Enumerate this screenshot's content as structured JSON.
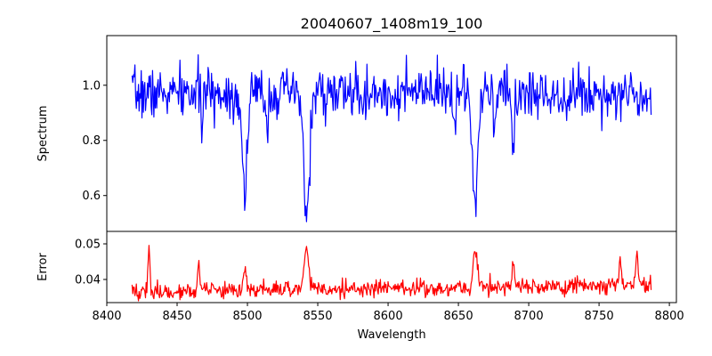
{
  "chart_data": [
    {
      "type": "line",
      "title": "20040607_1408m19_100",
      "ylabel": "Spectrum",
      "xlabel": "",
      "xlim": [
        8400,
        8805
      ],
      "ylim": [
        0.47,
        1.18
      ],
      "yticks": [
        0.6,
        0.8,
        1.0
      ],
      "ytick_labels": [
        "0.6",
        "0.8",
        "1.0"
      ],
      "show_xtick_labels": false,
      "color": "#0000ff",
      "x_range": [
        8418,
        8787
      ],
      "continuum": 0.97,
      "noise": 0.045,
      "seed": 7,
      "features": [
        {
          "x": 8498,
          "depth": 0.34,
          "width": 1.8
        },
        {
          "x": 8542,
          "depth": 0.45,
          "width": 2.0
        },
        {
          "x": 8662,
          "depth": 0.43,
          "width": 1.9
        },
        {
          "x": 8689,
          "depth": 0.26,
          "width": 0.7
        },
        {
          "x": 8468,
          "depth": 0.08,
          "width": 0.8
        },
        {
          "x": 8514,
          "depth": 0.1,
          "width": 0.9
        },
        {
          "x": 8582,
          "depth": 0.1,
          "width": 0.8
        },
        {
          "x": 8648,
          "depth": 0.08,
          "width": 0.9
        },
        {
          "x": 8675,
          "depth": 0.1,
          "width": 0.8
        }
      ]
    },
    {
      "type": "line",
      "title": "",
      "ylabel": "Error",
      "xlabel": "Wavelength",
      "xlim": [
        8400,
        8805
      ],
      "ylim": [
        0.0335,
        0.0535
      ],
      "xticks": [
        8400,
        8450,
        8500,
        8550,
        8600,
        8650,
        8700,
        8750,
        8800
      ],
      "xtick_labels": [
        "8400",
        "8450",
        "8500",
        "8550",
        "8600",
        "8650",
        "8700",
        "8750",
        "8800"
      ],
      "yticks": [
        0.04,
        0.05
      ],
      "ytick_labels": [
        "0.04",
        "0.05"
      ],
      "color": "#ff0000",
      "x_range": [
        8418,
        8787
      ],
      "baseline_start": 0.0365,
      "baseline_end": 0.0385,
      "noise": 0.0012,
      "seed": 19,
      "features": [
        {
          "x": 8430,
          "height": 0.013,
          "width": 0.7
        },
        {
          "x": 8465,
          "height": 0.008,
          "width": 0.7
        },
        {
          "x": 8498,
          "height": 0.006,
          "width": 1.2
        },
        {
          "x": 8542,
          "height": 0.013,
          "width": 1.5
        },
        {
          "x": 8662,
          "height": 0.01,
          "width": 1.5
        },
        {
          "x": 8689,
          "height": 0.007,
          "width": 0.7
        },
        {
          "x": 8765,
          "height": 0.008,
          "width": 0.8
        },
        {
          "x": 8777,
          "height": 0.009,
          "width": 0.8
        }
      ]
    }
  ]
}
